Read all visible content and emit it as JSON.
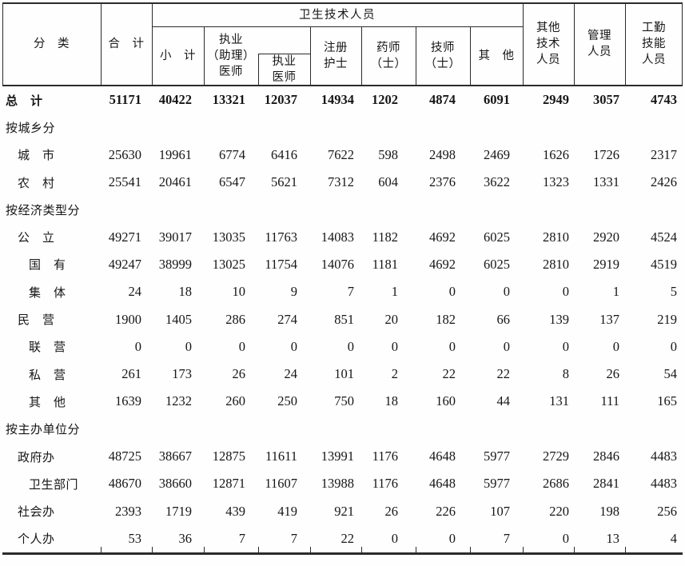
{
  "table": {
    "header": {
      "classification": "分　类",
      "total": "合　计",
      "health_group": "卫生技术人员",
      "subtotal": "小　计",
      "licensed_assistant_physicians": "执业\n（助理）\n医师",
      "licensed_physicians": "执业\n医师",
      "registered_nurses": "注册\n护士",
      "pharmacists": "药师\n（士）",
      "technicians": "技师\n（士）",
      "others": "其　他",
      "other_technical": "其他\n技术\n人员",
      "management": "管理\n人员",
      "skilled_workers": "工勤\n技能\n人员"
    },
    "rows": [
      {
        "label": "总　计",
        "indent": 0,
        "bold": true,
        "section": false,
        "values": [
          51171,
          40422,
          13321,
          12037,
          14934,
          1202,
          4874,
          6091,
          2949,
          3057,
          4743
        ]
      },
      {
        "label": "按城乡分",
        "indent": 0,
        "bold": false,
        "section": true,
        "values": []
      },
      {
        "label": "城　市",
        "indent": 1,
        "bold": false,
        "section": false,
        "values": [
          25630,
          19961,
          6774,
          6416,
          7622,
          598,
          2498,
          2469,
          1626,
          1726,
          2317
        ]
      },
      {
        "label": "农　村",
        "indent": 1,
        "bold": false,
        "section": false,
        "values": [
          25541,
          20461,
          6547,
          5621,
          7312,
          604,
          2376,
          3622,
          1323,
          1331,
          2426
        ]
      },
      {
        "label": "按经济类型分",
        "indent": 0,
        "bold": false,
        "section": true,
        "values": []
      },
      {
        "label": "公　立",
        "indent": 1,
        "bold": false,
        "section": false,
        "values": [
          49271,
          39017,
          13035,
          11763,
          14083,
          1182,
          4692,
          6025,
          2810,
          2920,
          4524
        ]
      },
      {
        "label": "国　有",
        "indent": 2,
        "bold": false,
        "section": false,
        "values": [
          49247,
          38999,
          13025,
          11754,
          14076,
          1181,
          4692,
          6025,
          2810,
          2919,
          4519
        ]
      },
      {
        "label": "集　体",
        "indent": 2,
        "bold": false,
        "section": false,
        "values": [
          24,
          18,
          10,
          9,
          7,
          1,
          0,
          0,
          0,
          1,
          5
        ]
      },
      {
        "label": "民　营",
        "indent": 1,
        "bold": false,
        "section": false,
        "values": [
          1900,
          1405,
          286,
          274,
          851,
          20,
          182,
          66,
          139,
          137,
          219
        ]
      },
      {
        "label": "联　营",
        "indent": 2,
        "bold": false,
        "section": false,
        "values": [
          0,
          0,
          0,
          0,
          0,
          0,
          0,
          0,
          0,
          0,
          0
        ]
      },
      {
        "label": "私　营",
        "indent": 2,
        "bold": false,
        "section": false,
        "values": [
          261,
          173,
          26,
          24,
          101,
          2,
          22,
          22,
          8,
          26,
          54
        ]
      },
      {
        "label": "其　他",
        "indent": 2,
        "bold": false,
        "section": false,
        "values": [
          1639,
          1232,
          260,
          250,
          750,
          18,
          160,
          44,
          131,
          111,
          165
        ]
      },
      {
        "label": "按主办单位分",
        "indent": 0,
        "bold": false,
        "section": true,
        "values": []
      },
      {
        "label": "政府办",
        "indent": 1,
        "bold": false,
        "section": false,
        "values": [
          48725,
          38667,
          12875,
          11611,
          13991,
          1176,
          4648,
          5977,
          2729,
          2846,
          4483
        ]
      },
      {
        "label": "卫生部门",
        "indent": 2,
        "bold": false,
        "section": false,
        "values": [
          48670,
          38660,
          12871,
          11607,
          13988,
          1176,
          4648,
          5977,
          2686,
          2841,
          4483
        ]
      },
      {
        "label": "社会办",
        "indent": 1,
        "bold": false,
        "section": false,
        "values": [
          2393,
          1719,
          439,
          419,
          921,
          26,
          226,
          107,
          220,
          198,
          256
        ]
      },
      {
        "label": "个人办",
        "indent": 1,
        "bold": false,
        "section": false,
        "values": [
          53,
          36,
          7,
          7,
          22,
          0,
          0,
          7,
          0,
          13,
          4
        ]
      }
    ]
  }
}
